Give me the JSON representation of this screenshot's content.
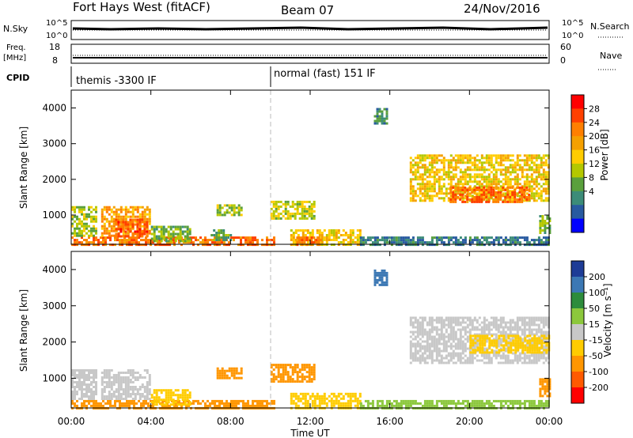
{
  "header": {
    "station": "Fort Hays West (fitACF)",
    "beam": "Beam 07",
    "date": "24/Nov/2016"
  },
  "noise_panel": {
    "left_label": "N.Sky",
    "left_ticks": [
      "10^5",
      "10^0"
    ],
    "right_ticks": [
      "10^5",
      "10^0"
    ],
    "right_label": "N.Search"
  },
  "freq_panel": {
    "left_label_top": "Freq.",
    "left_label_unit": "[MHz]",
    "left_ticks": [
      "18",
      "8"
    ],
    "right_ticks": [
      "60",
      "0"
    ],
    "right_label": "Nave"
  },
  "cpid_panel": {
    "label": "CPID",
    "segments": [
      {
        "start_hour": 0,
        "text": "themis -3300 IF"
      },
      {
        "start_hour": 10,
        "text": "normal (fast) 151 IF"
      }
    ]
  },
  "power_colorbar": {
    "label": "Power [dB]",
    "ticks": [
      "28",
      "24",
      "20",
      "16",
      "12",
      "8",
      "4"
    ],
    "colors": [
      "#ff0000",
      "#ff4000",
      "#ff7f00",
      "#f5a000",
      "#ffcc00",
      "#b4c800",
      "#5aa03c",
      "#3c8c78",
      "#285aa0",
      "#0000ff"
    ]
  },
  "velocity_colorbar": {
    "label": "Velocity [m s⁻¹]",
    "ticks": [
      "200",
      "100",
      "50",
      "15",
      "-15",
      "-50",
      "-100",
      "-200"
    ],
    "colors": [
      "#1e3c96",
      "#3c78b4",
      "#2d8c3c",
      "#8cc83c",
      "#c8c8c8",
      "#ffcc00",
      "#ff9600",
      "#ff5a00",
      "#ff0000"
    ]
  },
  "chart_data": {
    "type": "heatmap",
    "title": "Fort Hays West (fitACF)  Beam 07  24/Nov/2016",
    "xlabel": "Time UT",
    "ylabel": "Slant Range [km]",
    "x_ticks": [
      "00:00",
      "04:00",
      "08:00",
      "12:00",
      "16:00",
      "20:00",
      "00:00"
    ],
    "y_ticks": [
      "1000",
      "2000",
      "3000",
      "4000"
    ],
    "xlim_hours": [
      0,
      24
    ],
    "ylim_km": [
      180,
      4500
    ],
    "power_regions": [
      {
        "t0": 0.0,
        "t1": 10.2,
        "r0": 180,
        "r1": 400,
        "level": 26
      },
      {
        "t0": 0.0,
        "t1": 1.2,
        "r0": 400,
        "r1": 1250,
        "level": 14
      },
      {
        "t0": 1.5,
        "t1": 4.0,
        "r0": 400,
        "r1": 1250,
        "level": 22
      },
      {
        "t0": 2.2,
        "t1": 3.8,
        "r0": 400,
        "r1": 900,
        "level": 27
      },
      {
        "t0": 4.0,
        "t1": 6.0,
        "r0": 300,
        "r1": 700,
        "level": 12
      },
      {
        "t0": 7.0,
        "t1": 8.0,
        "r0": 300,
        "r1": 600,
        "level": 10
      },
      {
        "t0": 7.3,
        "t1": 8.5,
        "r0": 1000,
        "r1": 1300,
        "level": 14
      },
      {
        "t0": 10.0,
        "t1": 12.2,
        "r0": 900,
        "r1": 1400,
        "level": 15
      },
      {
        "t0": 11.0,
        "t1": 14.5,
        "r0": 180,
        "r1": 600,
        "level": 18
      },
      {
        "t0": 11.3,
        "t1": 12.5,
        "r0": 180,
        "r1": 400,
        "level": 27
      },
      {
        "t0": 14.5,
        "t1": 24.0,
        "r0": 180,
        "r1": 400,
        "level": 6
      },
      {
        "t0": 15.2,
        "t1": 15.8,
        "r0": 3600,
        "r1": 4000,
        "level": 8
      },
      {
        "t0": 17.0,
        "t1": 24.0,
        "r0": 1400,
        "r1": 2700,
        "level": 18
      },
      {
        "t0": 19.0,
        "t1": 23.0,
        "r0": 1400,
        "r1": 1800,
        "level": 26
      },
      {
        "t0": 23.5,
        "t1": 24.0,
        "r0": 500,
        "r1": 1000,
        "level": 12
      }
    ],
    "velocity_regions": [
      {
        "t0": 0.0,
        "t1": 10.2,
        "r0": 180,
        "r1": 400,
        "level": -60
      },
      {
        "t0": 0.0,
        "t1": 1.2,
        "r0": 400,
        "r1": 1250,
        "level": 0
      },
      {
        "t0": 1.5,
        "t1": 4.0,
        "r0": 400,
        "r1": 1250,
        "level": 0
      },
      {
        "t0": 4.0,
        "t1": 6.0,
        "r0": 300,
        "r1": 700,
        "level": -40
      },
      {
        "t0": 7.3,
        "t1": 8.5,
        "r0": 1000,
        "r1": 1300,
        "level": -80
      },
      {
        "t0": 10.0,
        "t1": 12.2,
        "r0": 900,
        "r1": 1400,
        "level": -60
      },
      {
        "t0": 11.0,
        "t1": 14.5,
        "r0": 180,
        "r1": 600,
        "level": -40
      },
      {
        "t0": 14.5,
        "t1": 24.0,
        "r0": 180,
        "r1": 400,
        "level": 20
      },
      {
        "t0": 15.2,
        "t1": 15.8,
        "r0": 3600,
        "r1": 4000,
        "level": 150
      },
      {
        "t0": 17.0,
        "t1": 24.0,
        "r0": 1400,
        "r1": 2700,
        "level": 0
      },
      {
        "t0": 20.0,
        "t1": 24.0,
        "r0": 1700,
        "r1": 2200,
        "level": -30
      },
      {
        "t0": 23.5,
        "t1": 24.0,
        "r0": 500,
        "r1": 1000,
        "level": -80
      }
    ],
    "cpid_change_hour": 10
  }
}
